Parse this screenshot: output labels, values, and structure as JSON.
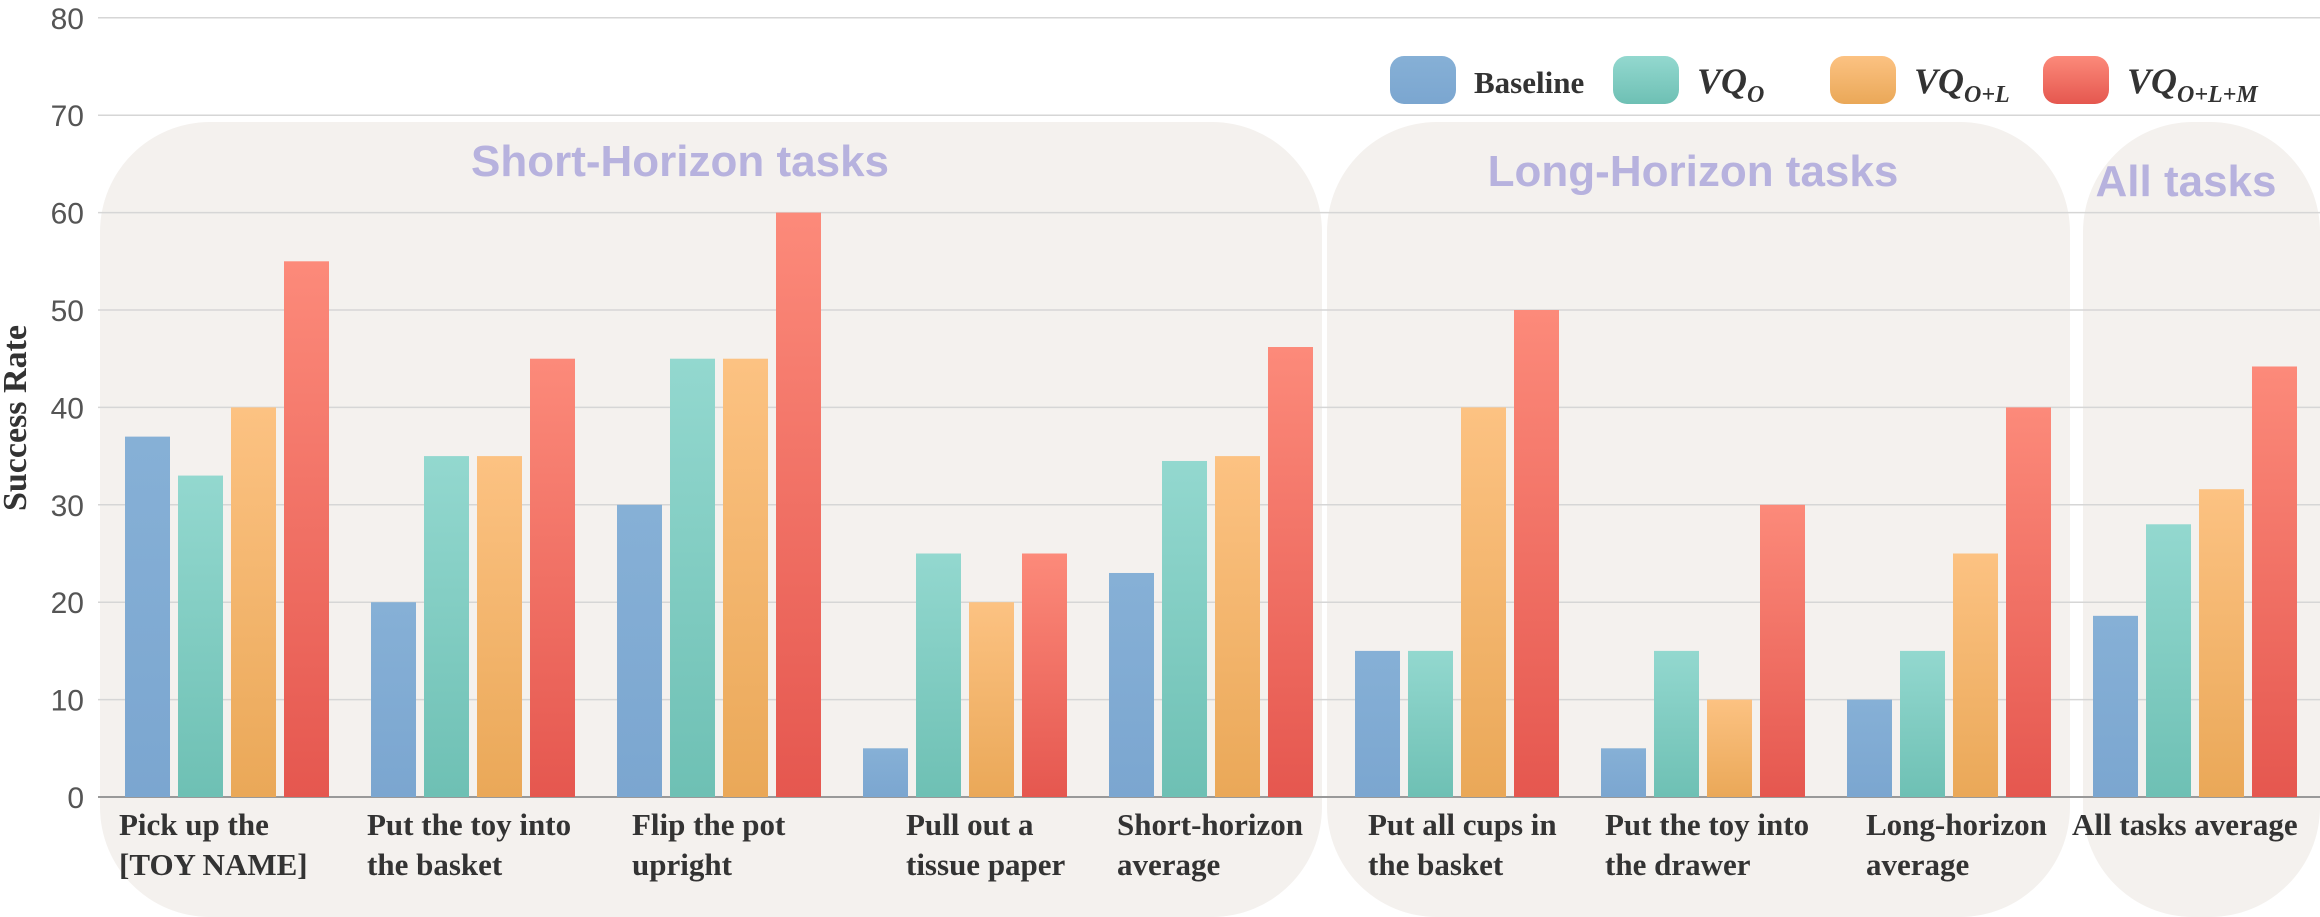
{
  "chart_data": {
    "type": "bar",
    "title": "",
    "xlabel": "",
    "ylabel": "Success Rate",
    "ylim": [
      0,
      80
    ],
    "yticks": [
      0,
      10,
      20,
      30,
      40,
      50,
      60,
      70,
      80
    ],
    "grid": true,
    "legend_position": "top-right",
    "categories": [
      [
        "Pick up the",
        "[TOY NAME]"
      ],
      [
        "Put the toy into",
        "the basket"
      ],
      [
        "Flip the pot",
        "upright"
      ],
      [
        "Pull out a",
        "tissue paper"
      ],
      [
        "Short-horizon",
        "average"
      ],
      [
        "Put all cups in",
        "the basket"
      ],
      [
        "Put the toy into",
        "the drawer"
      ],
      [
        "Long-horizon",
        "average"
      ],
      [
        "All tasks average"
      ]
    ],
    "series": [
      {
        "name": "Baseline",
        "legend": {
          "main": "Baseline"
        },
        "color_top": "#86b0d6",
        "color_bottom": "#7ba6d0",
        "values": [
          37,
          20,
          30,
          5,
          23,
          15,
          5,
          10,
          18.6
        ]
      },
      {
        "name": "VQ_O",
        "legend": {
          "main": "VQ",
          "sub": "O"
        },
        "color_top": "#93d8cf",
        "color_bottom": "#6ec0b4",
        "values": [
          33,
          35,
          45,
          25,
          34.5,
          15,
          15,
          15,
          28
        ]
      },
      {
        "name": "VQ_O+L",
        "legend": {
          "main": "VQ",
          "sub": "O+L"
        },
        "color_top": "#fcc282",
        "color_bottom": "#eaa858",
        "values": [
          40,
          35,
          45,
          20,
          35,
          40,
          10,
          25,
          31.6
        ]
      },
      {
        "name": "VQ_O+L+M",
        "legend": {
          "main": "VQ",
          "sub": "O+L+M"
        },
        "color_top": "#fc8a7a",
        "color_bottom": "#e5574f",
        "values": [
          55,
          45,
          60,
          25,
          46.2,
          50,
          30,
          40,
          44.2
        ]
      }
    ],
    "groups": [
      {
        "title": "Short-Horizon tasks",
        "categories": [
          0,
          1,
          2,
          3,
          4
        ]
      },
      {
        "title": "Long-Horizon tasks",
        "categories": [
          5,
          6,
          7
        ]
      },
      {
        "title": "All tasks",
        "categories": [
          8
        ]
      }
    ]
  }
}
